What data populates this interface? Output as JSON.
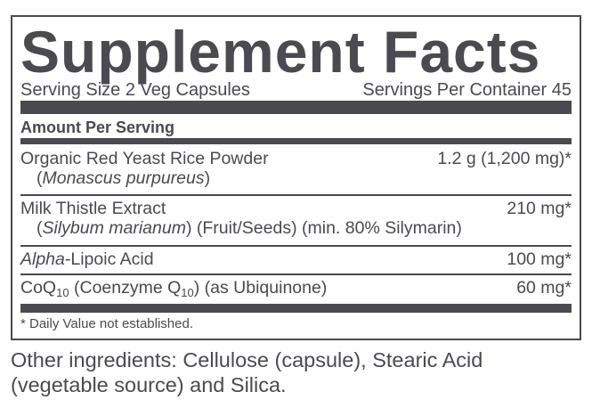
{
  "label": {
    "title": "Supplement Facts",
    "serving_size": "Serving Size 2 Veg Capsules",
    "servings_per_container": "Servings Per Container 45",
    "amount_per_serving": "Amount Per Serving",
    "ingredients": [
      {
        "name": "Organic Red Yeast Rice Powder",
        "amount": "1.2 g (1,200 mg)*",
        "latin": "Monascus purpureus"
      },
      {
        "name": "Milk Thistle Extract",
        "amount": "210 mg*",
        "latin": "Silybum marianum",
        "detail": " (Fruit/Seeds) (min. 80% Silymarin)"
      },
      {
        "name_italic": "Alpha",
        "name_rest": "-Lipoic Acid",
        "amount": "100 mg*"
      },
      {
        "name_a": "CoQ",
        "sub1": "10",
        "name_b": " (Coenzyme Q",
        "sub2": "10",
        "name_c": ") (as Ubiquinone)",
        "amount": "60 mg*"
      }
    ],
    "footnote": "* Daily Value not established."
  },
  "other_ingredients": "Other ingredients: Cellulose (capsule), Stearic Acid (vegetable source) and Silica.",
  "colors": {
    "ink": "#4a4a50",
    "background": "#ffffff"
  }
}
